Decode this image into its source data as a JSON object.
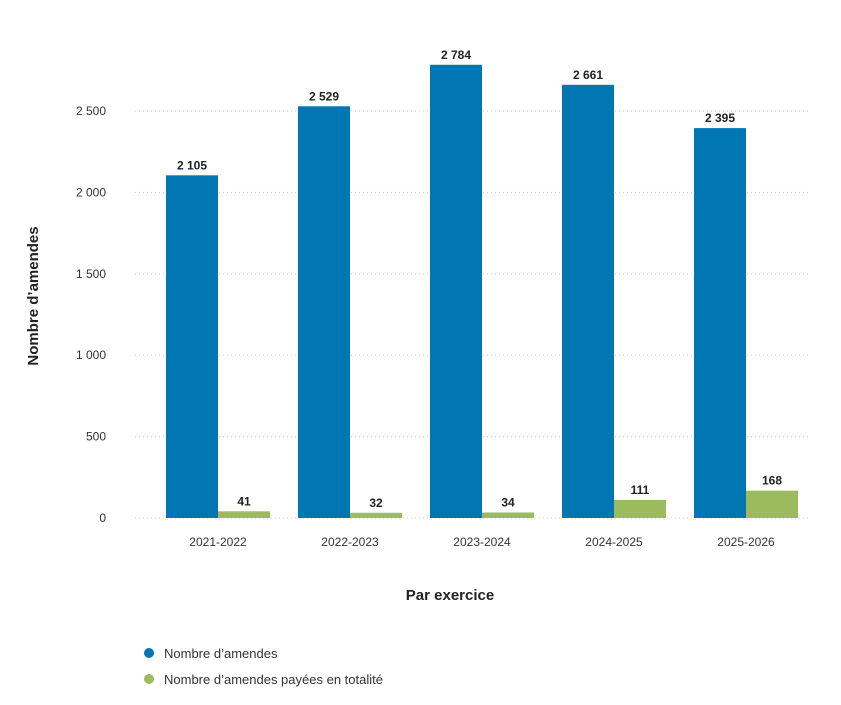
{
  "chart_data": {
    "type": "bar",
    "categories": [
      "2021-2022",
      "2022-2023",
      "2023-2024",
      "2024-2025",
      "2025-2026"
    ],
    "series": [
      {
        "name": "Nombre d’amendes",
        "values": [
          2105,
          2529,
          2784,
          2661,
          2395
        ],
        "labels": [
          "2 105",
          "2 529",
          "2 784",
          "2 661",
          "2 395"
        ],
        "color": "#0077b3"
      },
      {
        "name": "Nombre d’amendes payées en totalité",
        "values": [
          41,
          32,
          34,
          111,
          168
        ],
        "labels": [
          "41",
          "32",
          "34",
          "111",
          "168"
        ],
        "color": "#9bbb5c"
      }
    ],
    "xlabel": "Par exercice",
    "ylabel": "Nombre d’amendes",
    "ylim": [
      0,
      2800
    ],
    "yticks": [
      0,
      500,
      1000,
      1500,
      2000,
      2500
    ],
    "ytick_labels": [
      "0",
      "500",
      "1 000",
      "1 500",
      "2 000",
      "2 500"
    ],
    "grid": "horizontal-dotted",
    "legend": "bottom-left"
  }
}
